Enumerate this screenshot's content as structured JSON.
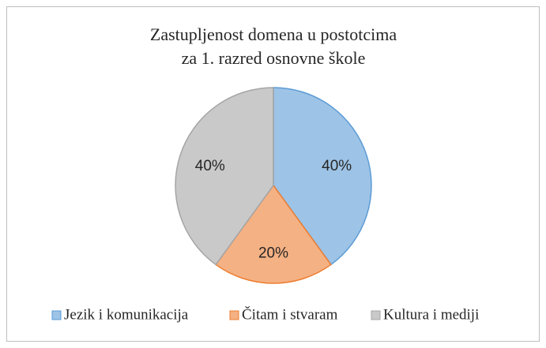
{
  "chart_data": {
    "type": "pie",
    "title": [
      "Zastupljenost domena u postotcima",
      "za 1. razred osnovne škole"
    ],
    "categories": [
      "Jezik i komunikacija",
      "Čitam i stvaram",
      "Kultura i mediji"
    ],
    "values": [
      40,
      20,
      40
    ],
    "value_labels": [
      "40%",
      "20%",
      "40%"
    ],
    "colors": [
      "#9dc3e6",
      "#f4b183",
      "#c9c9c9"
    ],
    "legend": "bottom"
  }
}
